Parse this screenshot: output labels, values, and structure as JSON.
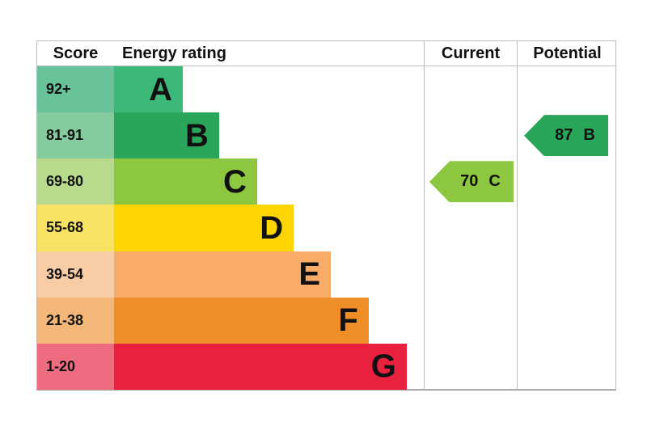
{
  "header": {
    "score": "Score",
    "energy_rating": "Energy rating",
    "current": "Current",
    "potential": "Potential"
  },
  "bands": [
    {
      "score": "92+",
      "letter": "A",
      "bar_color": "#3cb878",
      "tint_color": "#68c39a",
      "bar_width_pct": 22.2
    },
    {
      "score": "81-91",
      "letter": "B",
      "bar_color": "#2aa65a",
      "tint_color": "#84cb9e",
      "bar_width_pct": 33.9
    },
    {
      "score": "69-80",
      "letter": "C",
      "bar_color": "#8dc63f",
      "tint_color": "#b7da8d",
      "bar_width_pct": 46.2
    },
    {
      "score": "55-68",
      "letter": "D",
      "bar_color": "#fed501",
      "tint_color": "#f8e263",
      "bar_width_pct": 58.0
    },
    {
      "score": "39-54",
      "letter": "E",
      "bar_color": "#fbab68",
      "tint_color": "#f8cca4",
      "bar_width_pct": 70.0
    },
    {
      "score": "21-38",
      "letter": "F",
      "bar_color": "#ef8d27",
      "tint_color": "#f4b77a",
      "bar_width_pct": 82.2
    },
    {
      "score": "1-20",
      "letter": "G",
      "bar_color": "#e9203e",
      "tint_color": "#ee6c80",
      "bar_width_pct": 94.5
    }
  ],
  "current": {
    "value": "70",
    "letter": "C",
    "color": "#8dc63f",
    "band_row": 2
  },
  "potential": {
    "value": "87",
    "letter": "B",
    "color": "#2aa65a",
    "band_row": 1
  },
  "colors": {
    "border": "#bdbdbd",
    "text": "#111111",
    "background": "#ffffff"
  },
  "chart_data": {
    "type": "bar",
    "title": "Energy rating",
    "columns": [
      "Score",
      "Energy rating",
      "Current",
      "Potential"
    ],
    "categories": [
      "A",
      "B",
      "C",
      "D",
      "E",
      "F",
      "G"
    ],
    "score_ranges": [
      "92+",
      "81-91",
      "69-80",
      "55-68",
      "39-54",
      "21-38",
      "1-20"
    ],
    "band_colors": [
      "#3cb878",
      "#2aa65a",
      "#8dc63f",
      "#fed501",
      "#fbab68",
      "#ef8d27",
      "#e9203e"
    ],
    "bar_lengths_relative": [
      0.222,
      0.339,
      0.462,
      0.58,
      0.7,
      0.822,
      0.945
    ],
    "current_rating": {
      "value": 70,
      "band": "C"
    },
    "potential_rating": {
      "value": 87,
      "band": "B"
    },
    "legend_position": "none",
    "grid": false
  }
}
